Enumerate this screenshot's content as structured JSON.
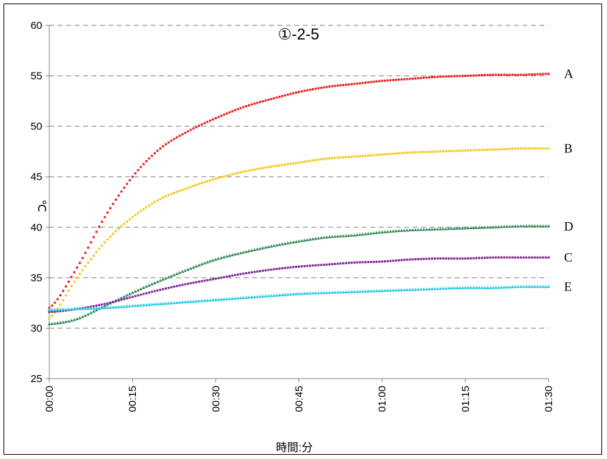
{
  "chart_data": {
    "type": "scatter",
    "title": "①-2-5",
    "xlabel": "時間:分",
    "ylabel": "℃",
    "xlim": [
      0,
      90
    ],
    "ylim": [
      25,
      60
    ],
    "x_ticks": [
      0,
      15,
      30,
      45,
      60,
      75,
      90
    ],
    "x_tick_labels": [
      "00:00",
      "00:15",
      "00:30",
      "00:45",
      "01:00",
      "01:15",
      "01:30"
    ],
    "y_ticks": [
      25,
      30,
      35,
      40,
      45,
      50,
      55,
      60
    ],
    "y_tick_labels": [
      "25",
      "30",
      "35",
      "40",
      "45",
      "50",
      "55",
      "60"
    ],
    "grid": "horizontal-dashed",
    "legend": "inline-right",
    "series": [
      {
        "name": "A",
        "color": "#e8191a",
        "marker": "square",
        "x": [
          0,
          5,
          10,
          15,
          20,
          25,
          30,
          35,
          40,
          45,
          50,
          55,
          60,
          65,
          70,
          75,
          80,
          85,
          90
        ],
        "y": [
          32.0,
          36.0,
          41.0,
          45.0,
          47.8,
          49.5,
          50.8,
          51.9,
          52.7,
          53.4,
          53.9,
          54.2,
          54.5,
          54.7,
          54.9,
          55.0,
          55.1,
          55.1,
          55.2
        ]
      },
      {
        "name": "B",
        "color": "#f5c518",
        "marker": "square",
        "x": [
          0,
          5,
          10,
          15,
          20,
          25,
          30,
          35,
          40,
          45,
          50,
          55,
          60,
          65,
          70,
          75,
          80,
          85,
          90
        ],
        "y": [
          31.0,
          35.0,
          38.5,
          41.0,
          42.8,
          43.9,
          44.8,
          45.5,
          46.0,
          46.4,
          46.8,
          47.0,
          47.2,
          47.4,
          47.5,
          47.6,
          47.7,
          47.8,
          47.8
        ]
      },
      {
        "name": "D",
        "color": "#2e8b57",
        "marker": "triangle",
        "x": [
          0,
          5,
          10,
          15,
          20,
          25,
          30,
          35,
          40,
          45,
          50,
          55,
          60,
          65,
          70,
          75,
          80,
          85,
          90
        ],
        "y": [
          30.4,
          30.9,
          32.2,
          33.5,
          34.7,
          35.8,
          36.8,
          37.5,
          38.1,
          38.6,
          39.0,
          39.2,
          39.5,
          39.7,
          39.8,
          39.9,
          40.0,
          40.1,
          40.1
        ]
      },
      {
        "name": "C",
        "color": "#7d1f8f",
        "marker": "square",
        "x": [
          0,
          5,
          10,
          15,
          20,
          25,
          30,
          35,
          40,
          45,
          50,
          55,
          60,
          65,
          70,
          75,
          80,
          85,
          90
        ],
        "y": [
          31.6,
          31.9,
          32.4,
          33.1,
          33.8,
          34.4,
          34.9,
          35.4,
          35.8,
          36.1,
          36.3,
          36.5,
          36.6,
          36.8,
          36.9,
          36.9,
          37.0,
          37.0,
          37.0
        ]
      },
      {
        "name": "E",
        "color": "#1ec8e6",
        "marker": "triangle",
        "x": [
          0,
          5,
          10,
          15,
          20,
          25,
          30,
          35,
          40,
          45,
          50,
          55,
          60,
          65,
          70,
          75,
          80,
          85,
          90
        ],
        "y": [
          31.8,
          31.9,
          32.0,
          32.2,
          32.4,
          32.6,
          32.8,
          33.0,
          33.2,
          33.4,
          33.5,
          33.6,
          33.7,
          33.8,
          33.9,
          34.0,
          34.0,
          34.1,
          34.1
        ]
      }
    ]
  }
}
